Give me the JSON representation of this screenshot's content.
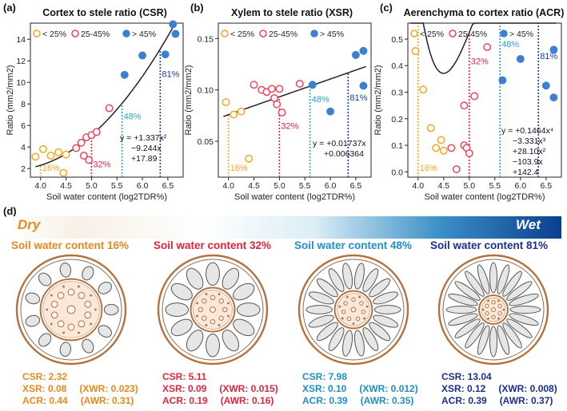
{
  "panels": [
    {
      "letter": "(a)",
      "title": "Cortex to stele ratio (CSR)"
    },
    {
      "letter": "(b)",
      "title": "Xylem to stele ratio (XSR)"
    },
    {
      "letter": "(c)",
      "title": "Aerenchyma to cortex ratio (ACR)"
    }
  ],
  "colors": {
    "low": "#f5a623",
    "mid": "#e8475f",
    "high": "#3d7fd1",
    "line48": "#2a9fd6",
    "line81": "#1a3fa0",
    "orange": "#e8891e",
    "red": "#e0263c",
    "blue": "#1f8fc8",
    "navy": "#1a2f8f"
  },
  "chart_data": [
    {
      "type": "scatter",
      "title": "Cortex to stele ratio (CSR)",
      "xlabel": "Soil water content (log2TDR%)",
      "ylabel": "Ratio (mm2/mm2)",
      "xlim": [
        3.8,
        6.8
      ],
      "ylim": [
        1.2,
        15.5
      ],
      "xticks": [
        "4.0",
        "4.5",
        "5.0",
        "5.5",
        "6.0",
        "6.5"
      ],
      "yticks": [
        "2",
        "4",
        "6",
        "8",
        "10",
        "12",
        "14"
      ],
      "legend": [
        "< 25%",
        "25-45%",
        "> 45%"
      ],
      "series": [
        {
          "name": "< 25%",
          "color": "low",
          "x": [
            3.9,
            4.05,
            4.2,
            4.35,
            4.45,
            4.5
          ],
          "y": [
            3.1,
            3.8,
            3.2,
            3.5,
            1.6,
            3.3
          ]
        },
        {
          "name": "25-45%",
          "color": "mid",
          "x": [
            4.7,
            4.8,
            4.85,
            4.9,
            4.95,
            5.0,
            5.1,
            5.35
          ],
          "y": [
            3.9,
            4.4,
            3.2,
            4.9,
            2.8,
            5.1,
            5.4,
            7.6
          ]
        },
        {
          "name": "> 45%",
          "color": "high",
          "x": [
            5.65,
            6.0,
            6.45,
            6.6,
            6.65
          ],
          "y": [
            10.7,
            12.5,
            12.6,
            15.4,
            14.5
          ]
        }
      ],
      "fit": {
        "type": "poly2",
        "coef": [
          1.337,
          -9.244,
          17.89
        ],
        "xrange": [
          3.9,
          6.65
        ]
      },
      "equation": [
        "y = +1.337x²",
        "−9.244x",
        "+17.89"
      ],
      "vlines": [
        {
          "x": 4.0,
          "label": "16%",
          "color": "low"
        },
        {
          "x": 5.0,
          "label": "32%",
          "color": "red"
        },
        {
          "x": 5.6,
          "label": "48%",
          "color": "line48"
        },
        {
          "x": 6.35,
          "label": "81%",
          "color": "line81"
        }
      ]
    },
    {
      "type": "scatter",
      "title": "Xylem to stele ratio (XSR)",
      "xlabel": "Soil water content (log2TDR%)",
      "ylabel": "Ratio (mm2/mm2)",
      "xlim": [
        3.8,
        6.8
      ],
      "ylim": [
        0.015,
        0.165
      ],
      "xticks": [
        "4.0",
        "4.5",
        "5.0",
        "5.5",
        "6.0",
        "6.5"
      ],
      "yticks": [
        "0.05",
        "0.10",
        "0.15"
      ],
      "legend": [
        "< 25%",
        "25-45%",
        "> 45%"
      ],
      "series": [
        {
          "name": "< 25%",
          "color": "low",
          "x": [
            3.95,
            4.1,
            4.25,
            4.4
          ],
          "y": [
            0.088,
            0.076,
            0.079,
            0.033
          ]
        },
        {
          "name": "25-45%",
          "color": "mid",
          "x": [
            4.5,
            4.65,
            4.75,
            4.85,
            4.9,
            4.95,
            5.0,
            5.05,
            5.4
          ],
          "y": [
            0.105,
            0.1,
            0.098,
            0.101,
            0.092,
            0.086,
            0.101,
            0.078,
            0.106
          ]
        },
        {
          "name": "> 45%",
          "color": "high",
          "x": [
            5.65,
            6.0,
            6.5,
            6.65,
            6.65
          ],
          "y": [
            0.105,
            0.079,
            0.134,
            0.138,
            0.104
          ]
        }
      ],
      "fit": {
        "type": "poly1",
        "coef": [
          0.01737,
          0.006364
        ],
        "xrange": [
          3.9,
          6.7
        ]
      },
      "equation": [
        "y = +0.01737x",
        "+0.006364"
      ],
      "vlines": [
        {
          "x": 4.0,
          "label": "16%",
          "color": "low"
        },
        {
          "x": 5.0,
          "label": "32%",
          "color": "red"
        },
        {
          "x": 5.6,
          "label": "48%",
          "color": "line48"
        },
        {
          "x": 6.35,
          "label": "81%",
          "color": "line81"
        }
      ]
    },
    {
      "type": "scatter",
      "title": "Aerenchyma to cortex ratio (ACR)",
      "xlabel": "Soil water content (log2TDR%)",
      "ylabel": "Ratio (mm2/mm2)",
      "xlim": [
        3.8,
        6.8
      ],
      "ylim": [
        -0.02,
        0.56
      ],
      "xticks": [
        "4.0",
        "4.5",
        "5.0",
        "5.5",
        "6.0",
        "6.5"
      ],
      "yticks": [
        "0.0",
        "0.1",
        "0.2",
        "0.3",
        "0.4",
        "0.5"
      ],
      "legend": [
        "< 25%",
        "25-45%",
        "> 45%"
      ],
      "series": [
        {
          "name": "< 25%",
          "color": "low",
          "x": [
            3.95,
            4.1,
            4.25,
            4.35,
            4.45,
            4.5
          ],
          "y": [
            0.455,
            0.31,
            0.165,
            0.09,
            0.12,
            0.08
          ]
        },
        {
          "name": "25-45%",
          "color": "mid",
          "x": [
            4.65,
            4.75,
            4.9,
            4.9,
            4.95,
            5.0,
            5.1,
            5.35
          ],
          "y": [
            0.09,
            0.01,
            0.1,
            0.25,
            0.09,
            0.07,
            0.285,
            0.47
          ]
        },
        {
          "name": "> 45%",
          "color": "high",
          "x": [
            5.65,
            6.0,
            6.5,
            6.65,
            6.65
          ],
          "y": [
            0.345,
            0.425,
            0.325,
            0.46,
            0.28
          ]
        }
      ],
      "fit": {
        "type": "poly4",
        "coef": [
          0.1464,
          -3.331,
          28.1,
          -103.9,
          142.4
        ],
        "xrange": [
          3.85,
          6.7
        ]
      },
      "equation": [
        "y = +0.1464x⁴",
        "−3.331x³",
        "+28.10x²",
        "−103.9x",
        "+142.4"
      ],
      "vlines": [
        {
          "x": 4.0,
          "label": "16%",
          "color": "low"
        },
        {
          "x": 5.0,
          "label": "32%",
          "color": "red"
        },
        {
          "x": 5.6,
          "label": "48%",
          "color": "line48"
        },
        {
          "x": 6.35,
          "label": "81%",
          "color": "line81"
        }
      ]
    }
  ],
  "panel_d": {
    "letter": "(d)",
    "dry": "Dry",
    "wet": "Wet",
    "sections": [
      {
        "title": "Soil water content 16%",
        "color": "orange",
        "csr": "CSR: 2.32",
        "xsr": "XSR: 0.08",
        "xwr": "(XWR: 0.023)",
        "acr": "ACR: 0.44",
        "awr": "(AWR: 0.31)"
      },
      {
        "title": "Soil water content 32%",
        "color": "red",
        "csr": "CSR: 5.11",
        "xsr": "XSR: 0.09",
        "xwr": "(XWR: 0.015)",
        "acr": "ACR: 0.19",
        "awr": "(AWR: 0.16)"
      },
      {
        "title": "Soil water content 48%",
        "color": "blue",
        "csr": "CSR: 7.98",
        "xsr": "XSR: 0.10",
        "xwr": "(XWR: 0.012)",
        "acr": "ACR: 0.39",
        "awr": "(AWR: 0.35)"
      },
      {
        "title": "Soil water content 81%",
        "color": "navy",
        "csr": "CSR: 13.04",
        "xsr": "XSR: 0.12",
        "xwr": "(XWR: 0.008)",
        "acr": "ACR: 0.39",
        "awr": "(AWR: 0.37)"
      }
    ],
    "roots": [
      {
        "n_aer": 11,
        "stele_r": 0.52,
        "xylem_n": 10
      },
      {
        "n_aer": 12,
        "stele_r": 0.36,
        "xylem_n": 8
      },
      {
        "n_aer": 18,
        "stele_r": 0.3,
        "xylem_n": 7
      },
      {
        "n_aer": 20,
        "stele_r": 0.22,
        "xylem_n": 6
      }
    ]
  }
}
